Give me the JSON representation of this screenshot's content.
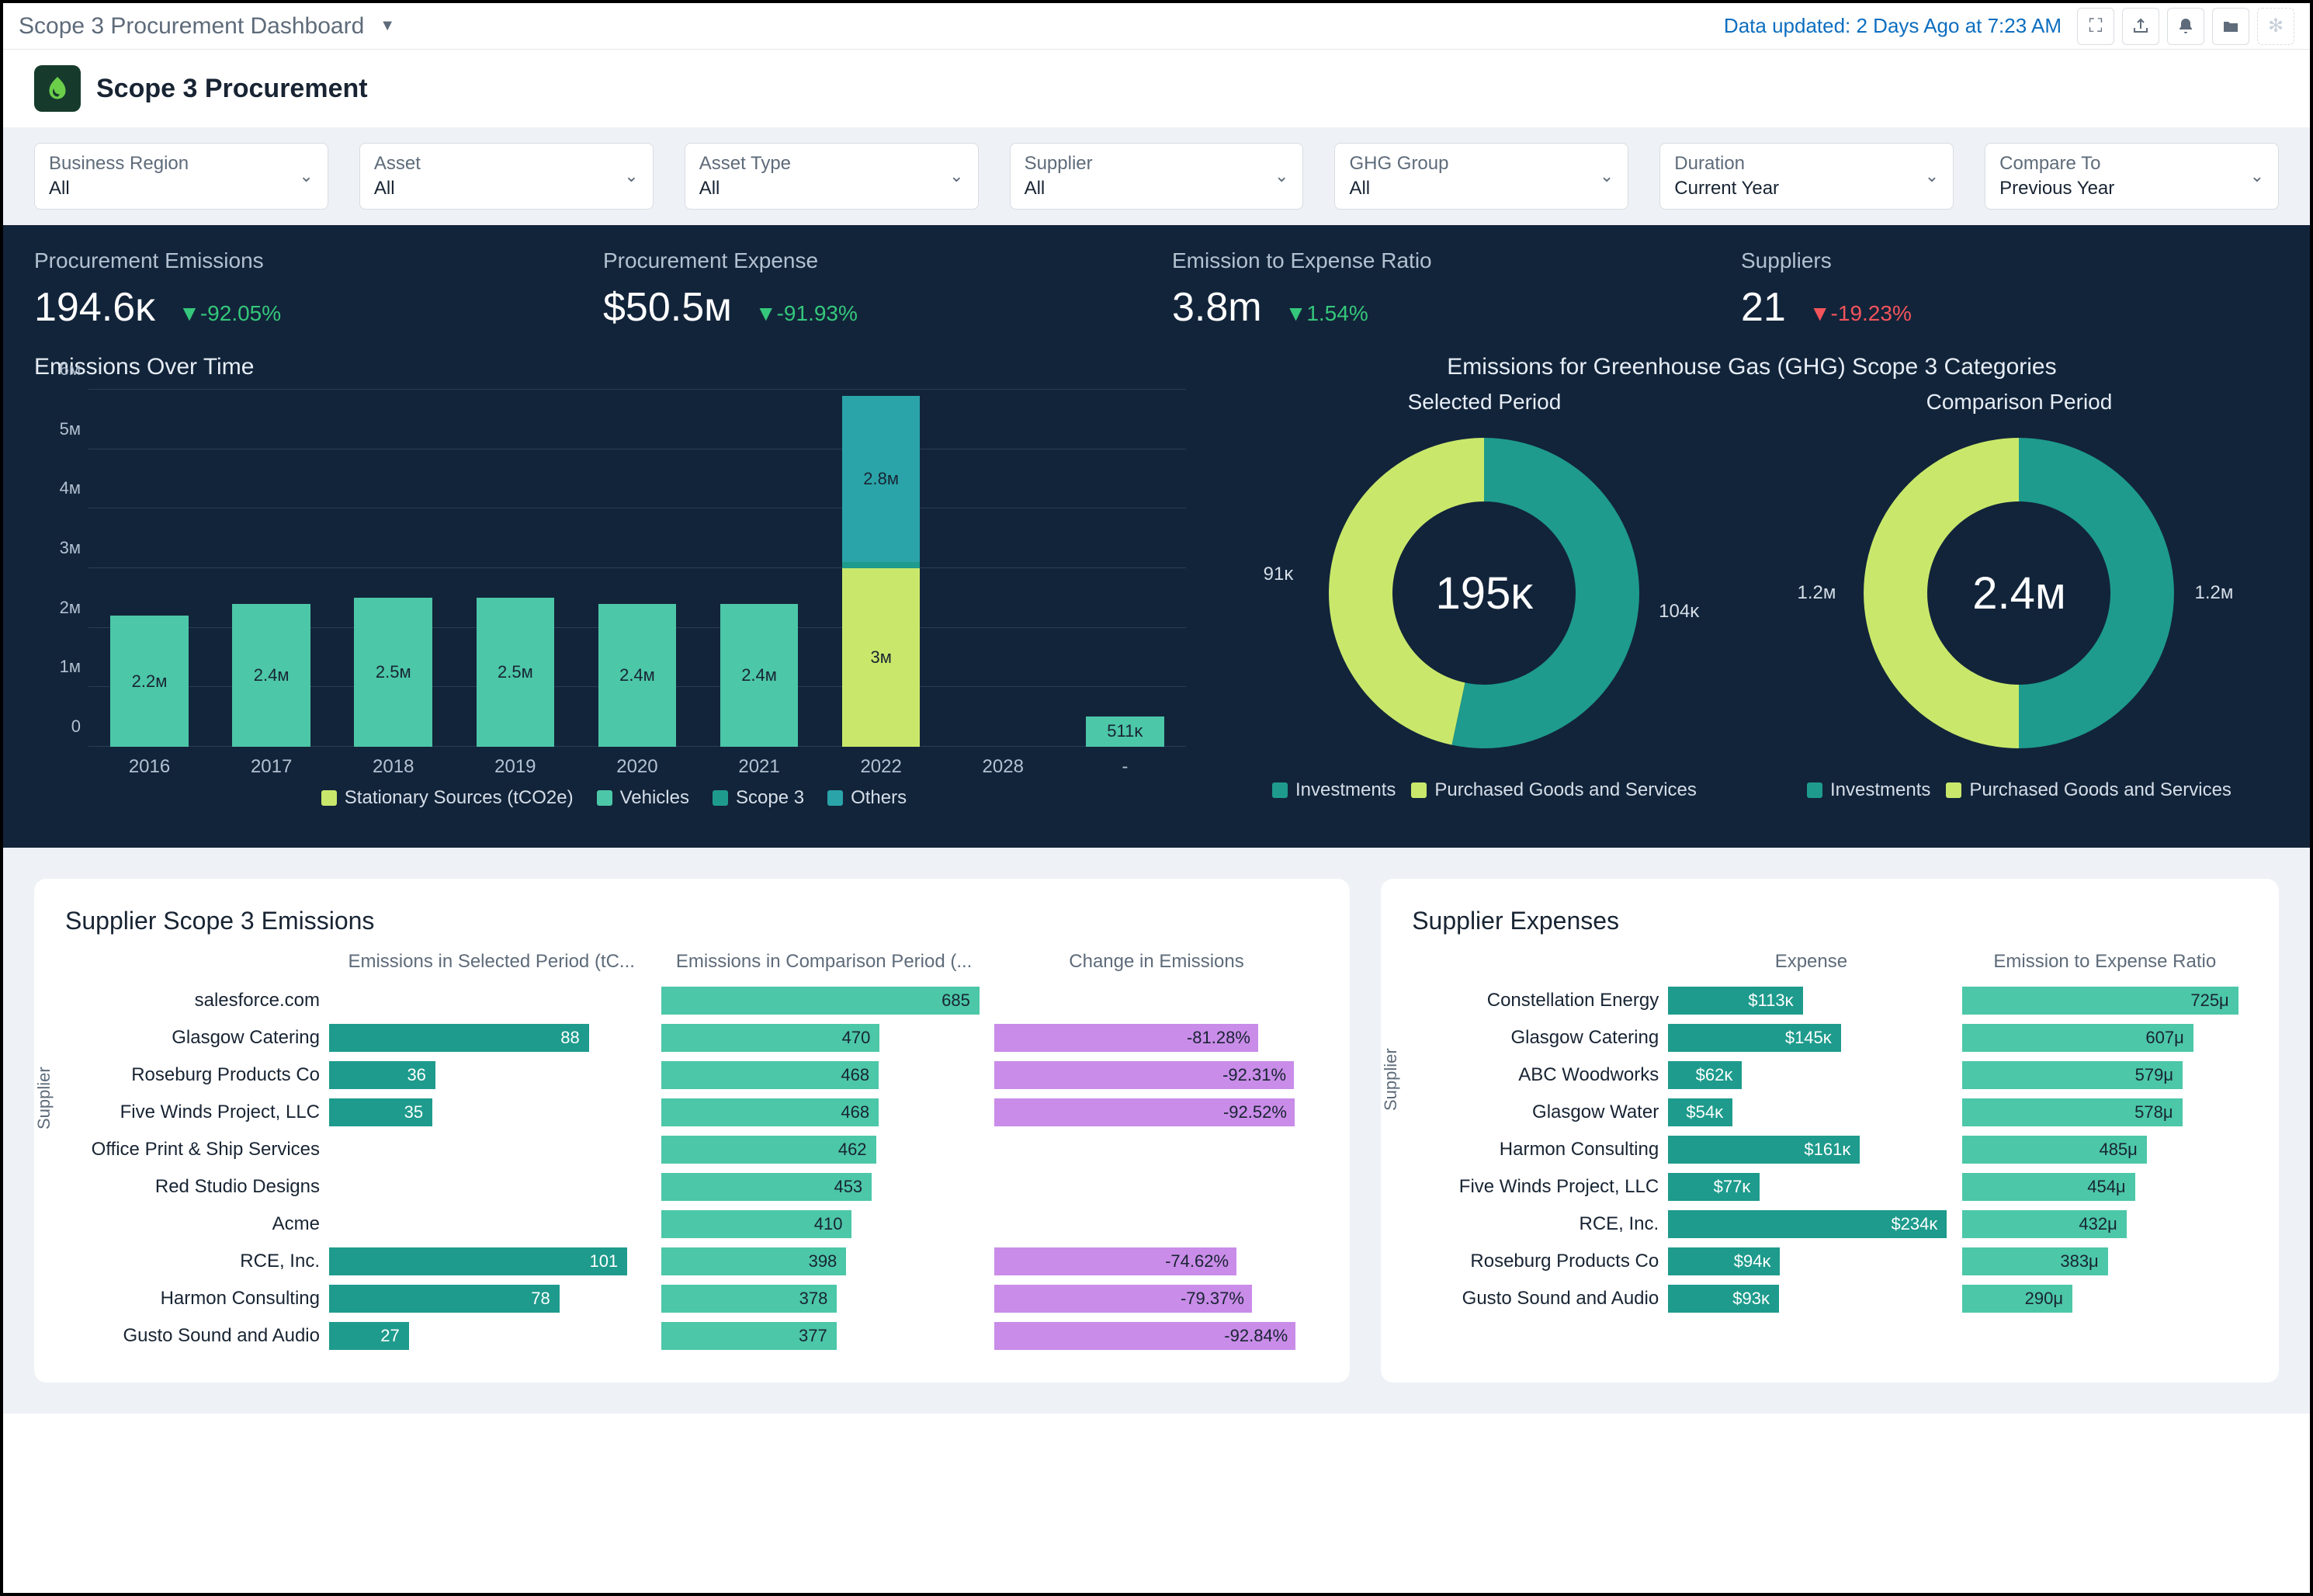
{
  "topbar": {
    "title": "Scope 3 Procurement Dashboard",
    "data_updated": "Data updated: 2 Days Ago at 7:23 AM"
  },
  "page": {
    "title": "Scope 3 Procurement"
  },
  "filters": [
    {
      "label": "Business Region",
      "value": "All"
    },
    {
      "label": "Asset",
      "value": "All"
    },
    {
      "label": "Asset Type",
      "value": "All"
    },
    {
      "label": "Supplier",
      "value": "All"
    },
    {
      "label": "GHG Group",
      "value": "All"
    },
    {
      "label": "Duration",
      "value": "Current Year"
    },
    {
      "label": "Compare To",
      "value": "Previous Year"
    }
  ],
  "kpis": [
    {
      "label": "Procurement Emissions",
      "value": "194.6ᴋ",
      "delta": "▼-92.05%",
      "delta_class": "delta-green"
    },
    {
      "label": "Procurement Expense",
      "value": "$50.5ᴍ",
      "delta": "▼-91.93%",
      "delta_class": "delta-green"
    },
    {
      "label": "Emission to Expense Ratio",
      "value": "3.8m",
      "delta": "▼1.54%",
      "delta_class": "delta-green"
    },
    {
      "label": "Suppliers",
      "value": "21",
      "delta": "▼-19.23%",
      "delta_class": "delta-red"
    }
  ],
  "emissions_chart": {
    "title": "Emissions Over Time",
    "ymax": 6,
    "ylabels": [
      "0",
      "1ᴍ",
      "2ᴍ",
      "3ᴍ",
      "4ᴍ",
      "5ᴍ",
      "6ᴍ"
    ],
    "colors": {
      "stationary": "#c9e86b",
      "vehicles": "#4cc7a8",
      "scope3": "#1e9b8c",
      "others": "#2aa4a8"
    },
    "categories": [
      {
        "x": "2016",
        "segs": [
          {
            "v": 2.2,
            "c": "#4cc7a8",
            "lab": "2.2ᴍ"
          }
        ]
      },
      {
        "x": "2017",
        "segs": [
          {
            "v": 2.4,
            "c": "#4cc7a8",
            "lab": "2.4ᴍ"
          }
        ]
      },
      {
        "x": "2018",
        "segs": [
          {
            "v": 2.5,
            "c": "#4cc7a8",
            "lab": "2.5ᴍ"
          }
        ]
      },
      {
        "x": "2019",
        "segs": [
          {
            "v": 2.5,
            "c": "#4cc7a8",
            "lab": "2.5ᴍ"
          }
        ]
      },
      {
        "x": "2020",
        "segs": [
          {
            "v": 2.4,
            "c": "#4cc7a8",
            "lab": "2.4ᴍ"
          }
        ]
      },
      {
        "x": "2021",
        "segs": [
          {
            "v": 2.4,
            "c": "#4cc7a8",
            "lab": "2.4ᴍ"
          }
        ]
      },
      {
        "x": "2022",
        "segs": [
          {
            "v": 3.0,
            "c": "#c9e86b",
            "lab": "3ᴍ"
          },
          {
            "v": 0.1,
            "c": "#1e9b8c",
            "lab": ""
          },
          {
            "v": 2.8,
            "c": "#2aa4a8",
            "lab": "2.8ᴍ"
          }
        ]
      },
      {
        "x": "2028",
        "segs": []
      },
      {
        "x": "-",
        "segs": [
          {
            "v": 0.511,
            "c": "#4cc7a8",
            "lab": "511ᴋ"
          }
        ]
      }
    ],
    "legend": [
      {
        "label": "Stationary Sources (tCO2e)",
        "color": "#c9e86b"
      },
      {
        "label": "Vehicles",
        "color": "#4cc7a8"
      },
      {
        "label": "Scope 3",
        "color": "#1e9b8c"
      },
      {
        "label": "Others",
        "color": "#2aa4a8"
      }
    ]
  },
  "ghg_categories": {
    "title": "Emissions for Greenhouse Gas (GHG) Scope 3 Categories",
    "selected": {
      "subtitle": "Selected Period",
      "center": "195ᴋ",
      "slices": [
        {
          "label": "104ᴋ",
          "value": 104,
          "color": "#1e9b8c"
        },
        {
          "label": "91ᴋ",
          "value": 91,
          "color": "#c9e86b"
        }
      ]
    },
    "comparison": {
      "subtitle": "Comparison Period",
      "center": "2.4ᴍ",
      "slices": [
        {
          "label": "1.2ᴍ",
          "value": 1.2,
          "color": "#1e9b8c"
        },
        {
          "label": "1.2ᴍ",
          "value": 1.2,
          "color": "#c9e86b"
        }
      ]
    },
    "legend": [
      {
        "label": "Investments",
        "color": "#1e9b8c"
      },
      {
        "label": "Purchased Goods and Services",
        "color": "#c9e86b"
      }
    ]
  },
  "supplier_emissions": {
    "title": "Supplier Scope 3 Emissions",
    "axis_label": "Supplier",
    "cols": [
      "Emissions in Selected Period (tC...",
      "Emissions in Comparison Period (...",
      "Change in Emissions"
    ],
    "max_selected": 110,
    "max_comparison": 700,
    "colors": {
      "selected": "#1e9b8c",
      "comparison": "#4cc7a8",
      "change": "#c98ce8"
    },
    "rows": [
      {
        "name": "salesforce.com",
        "sel": null,
        "comp": 685,
        "chg": null
      },
      {
        "name": "Glasgow Catering",
        "sel": 88,
        "comp": 470,
        "chg": "-81.28%"
      },
      {
        "name": "Roseburg Products Co",
        "sel": 36,
        "comp": 468,
        "chg": "-92.31%"
      },
      {
        "name": "Five Winds Project, LLC",
        "sel": 35,
        "comp": 468,
        "chg": "-92.52%"
      },
      {
        "name": "Office Print & Ship Services",
        "sel": null,
        "comp": 462,
        "chg": null
      },
      {
        "name": "Red Studio Designs",
        "sel": null,
        "comp": 453,
        "chg": null
      },
      {
        "name": "Acme",
        "sel": null,
        "comp": 410,
        "chg": null
      },
      {
        "name": "RCE, Inc.",
        "sel": 101,
        "comp": 398,
        "chg": "-74.62%"
      },
      {
        "name": "Harmon Consulting",
        "sel": 78,
        "comp": 378,
        "chg": "-79.37%"
      },
      {
        "name": "Gusto Sound and Audio",
        "sel": 27,
        "comp": 377,
        "chg": "-92.84%"
      }
    ]
  },
  "supplier_expenses": {
    "title": "Supplier Expenses",
    "axis_label": "Supplier",
    "cols": [
      "Expense",
      "Emission to Expense Ratio"
    ],
    "max_expense": 240,
    "max_ratio": 750,
    "colors": {
      "expense": "#1e9b8c",
      "ratio": "#4cc7a8"
    },
    "rows": [
      {
        "name": "Constellation Energy",
        "exp": 113,
        "exp_lab": "$113ᴋ",
        "rat": 725,
        "rat_lab": "725μ"
      },
      {
        "name": "Glasgow Catering",
        "exp": 145,
        "exp_lab": "$145ᴋ",
        "rat": 607,
        "rat_lab": "607μ"
      },
      {
        "name": "ABC Woodworks",
        "exp": 62,
        "exp_lab": "$62ᴋ",
        "rat": 579,
        "rat_lab": "579μ"
      },
      {
        "name": "Glasgow Water",
        "exp": 54,
        "exp_lab": "$54ᴋ",
        "rat": 578,
        "rat_lab": "578μ"
      },
      {
        "name": "Harmon Consulting",
        "exp": 161,
        "exp_lab": "$161ᴋ",
        "rat": 485,
        "rat_lab": "485μ"
      },
      {
        "name": "Five Winds Project, LLC",
        "exp": 77,
        "exp_lab": "$77ᴋ",
        "rat": 454,
        "rat_lab": "454μ"
      },
      {
        "name": "RCE, Inc.",
        "exp": 234,
        "exp_lab": "$234ᴋ",
        "rat": 432,
        "rat_lab": "432μ"
      },
      {
        "name": "Roseburg Products Co",
        "exp": 94,
        "exp_lab": "$94ᴋ",
        "rat": 383,
        "rat_lab": "383μ"
      },
      {
        "name": "Gusto Sound and Audio",
        "exp": 93,
        "exp_lab": "$93ᴋ",
        "rat": 290,
        "rat_lab": "290μ"
      }
    ]
  }
}
